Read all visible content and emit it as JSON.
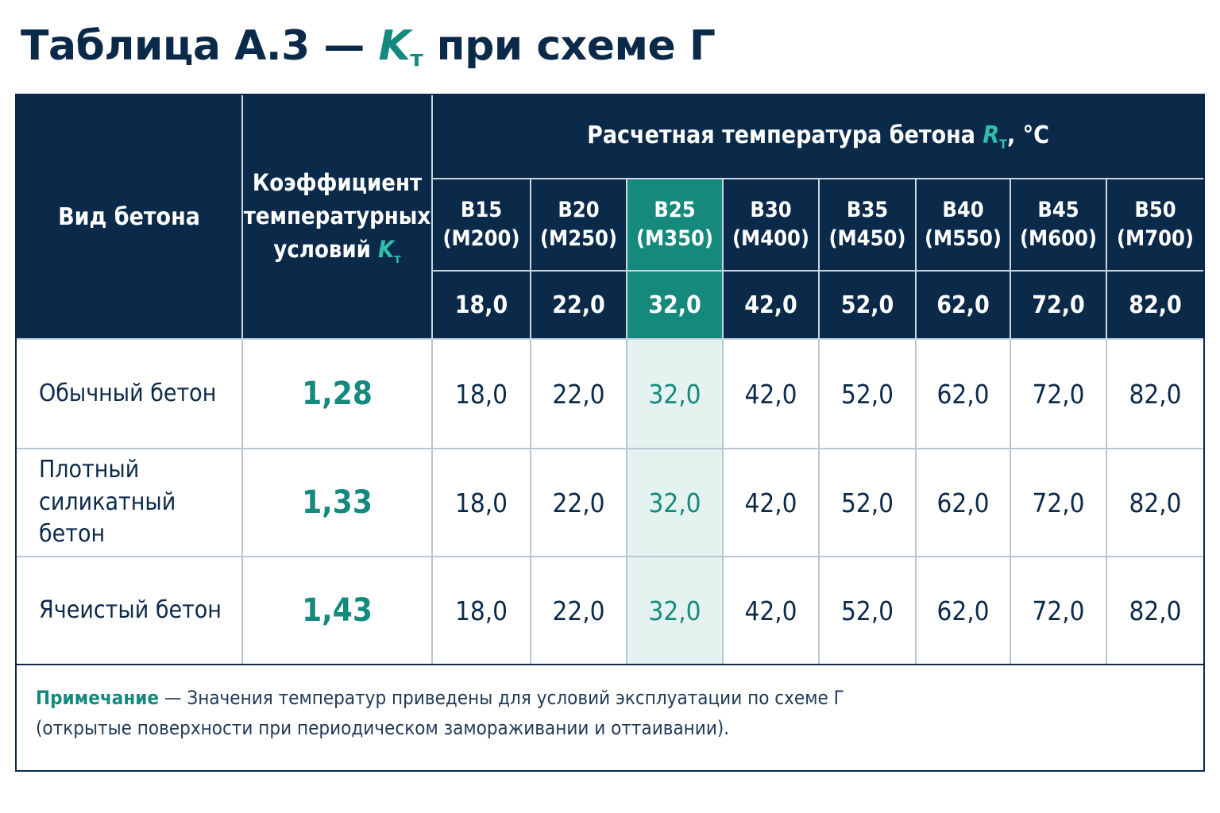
{
  "title": {
    "prefix": "Таблица А.3 — ",
    "symbol": "K",
    "symbol_sub": "т",
    "suffix": " при схеме Г"
  },
  "table": {
    "header_type": "Вид бетона",
    "header_coef_line1": "Коэффициент",
    "header_coef_line2": "температурных",
    "header_coef_line3": "условий ",
    "header_coef_symbol": "K",
    "header_coef_sub": "т",
    "header_range": "Расчетная температура бетона ",
    "header_range_symbol": "R",
    "header_range_sub": "T",
    "header_range_unit": ", °С",
    "grades": [
      {
        "b": "B15",
        "m": "(M200)",
        "value": "18,0"
      },
      {
        "b": "B20",
        "m": "(M250)",
        "value": "22,0"
      },
      {
        "b": "B25",
        "m": "(M350)",
        "value": "32,0"
      },
      {
        "b": "B30",
        "m": "(M400)",
        "value": "42,0"
      },
      {
        "b": "B35",
        "m": "(M450)",
        "value": "52,0"
      },
      {
        "b": "B40",
        "m": "(M550)",
        "value": "62,0"
      },
      {
        "b": "B45",
        "m": "(M600)",
        "value": "72,0"
      },
      {
        "b": "B50",
        "m": "(M700)",
        "value": "82,0"
      }
    ],
    "highlight_col": 2,
    "rows": [
      {
        "name_line1": "Обычный бетон",
        "name_line2": "",
        "coef": "1,28",
        "values": [
          "18,0",
          "22,0",
          "32,0",
          "42,0",
          "52,0",
          "62,0",
          "72,0",
          "82,0"
        ]
      },
      {
        "name_line1": "Плотный",
        "name_line2": "силикатный бетон",
        "coef": "1,33",
        "values": [
          "18,0",
          "22,0",
          "32,0",
          "42,0",
          "52,0",
          "62,0",
          "72,0",
          "82,0"
        ]
      },
      {
        "name_line1": "Ячеистый бетон",
        "name_line2": "",
        "coef": "1,43",
        "values": [
          "18,0",
          "22,0",
          "32,0",
          "42,0",
          "52,0",
          "62,0",
          "72,0",
          "82,0"
        ]
      }
    ]
  },
  "note": {
    "label": "Примечание",
    "line1": " — Значения температур приведены для условий эксплуатации по схеме Г",
    "line2": "(открытые поверхности при периодическом замораживании и оттаивании)."
  },
  "colors": {
    "navy": "#0b2a4a",
    "teal": "#14897d",
    "teal_light": "#2fbfae",
    "highlight_bg": "#e4f3ef"
  }
}
